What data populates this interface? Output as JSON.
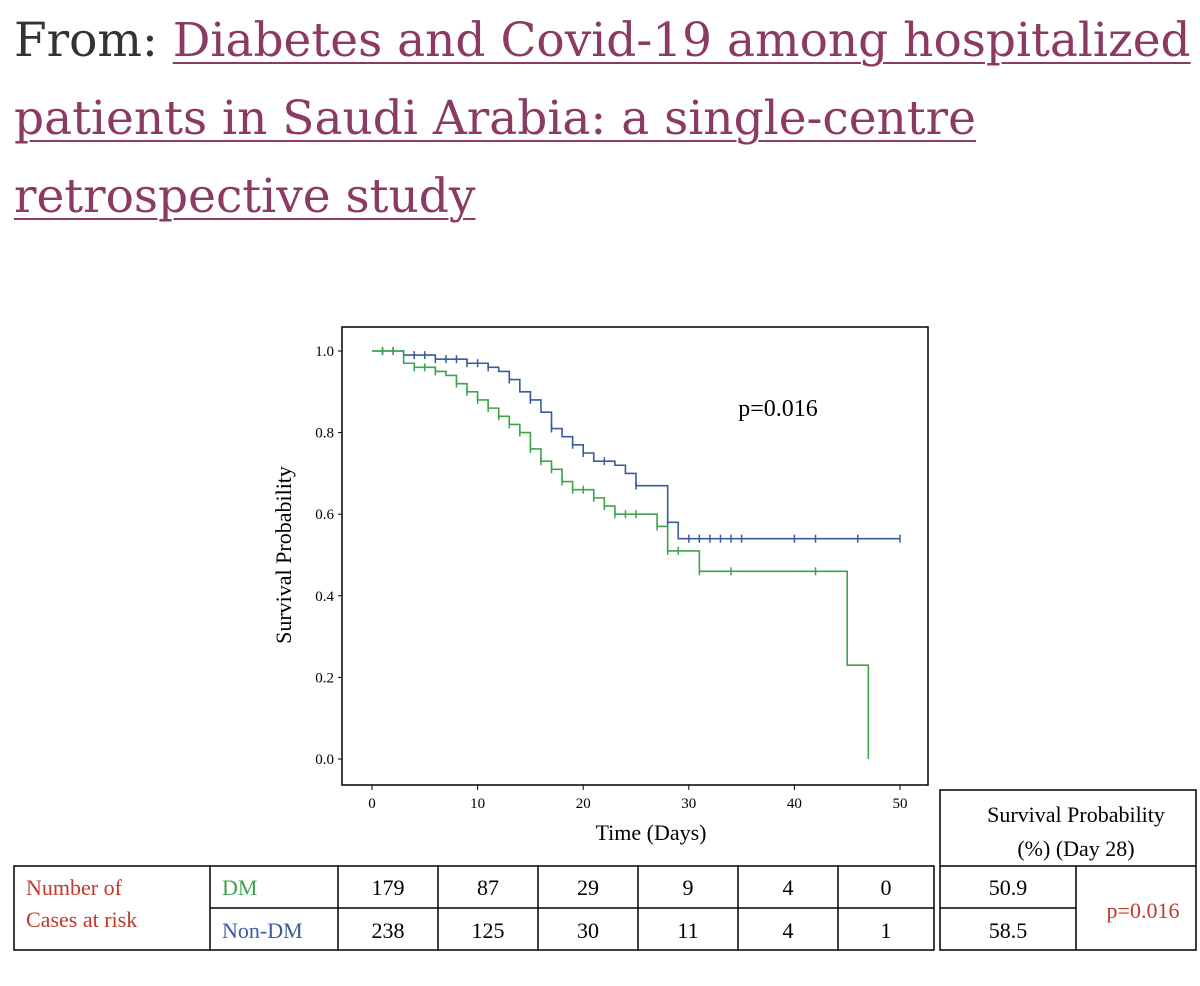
{
  "header": {
    "from_label": "From:",
    "link_text": "Diabetes and Covid-19 among hospitalized patients in Saudi Arabia: a single-centre retrospective study"
  },
  "colors": {
    "link": "#8b3a62",
    "dm": "#3fa34d",
    "non_dm": "#3a5ba0",
    "label_red": "#c0392b"
  },
  "chart_data": {
    "type": "line",
    "subtype": "kaplan-meier",
    "ylabel": "Survival Probability",
    "xlabel": "Time (Days)",
    "xlim": [
      0,
      50
    ],
    "ylim": [
      0,
      1.0
    ],
    "x_ticks": [
      "0",
      "10",
      "20",
      "30",
      "40",
      "50"
    ],
    "y_ticks": [
      "0.0",
      "0.2",
      "0.4",
      "0.6",
      "0.8",
      "1.0"
    ],
    "annotation": "p=0.016",
    "series": [
      {
        "name": "Non-DM",
        "color": "#3a5ba0",
        "steps": [
          [
            0,
            1.0
          ],
          [
            3,
            0.99
          ],
          [
            6,
            0.98
          ],
          [
            9,
            0.97
          ],
          [
            11,
            0.96
          ],
          [
            12,
            0.95
          ],
          [
            13,
            0.93
          ],
          [
            14,
            0.9
          ],
          [
            15,
            0.88
          ],
          [
            16,
            0.85
          ],
          [
            17,
            0.81
          ],
          [
            18,
            0.79
          ],
          [
            19,
            0.77
          ],
          [
            20,
            0.75
          ],
          [
            21,
            0.73
          ],
          [
            23,
            0.72
          ],
          [
            24,
            0.7
          ],
          [
            25,
            0.67
          ],
          [
            28,
            0.58
          ],
          [
            29,
            0.54
          ],
          [
            50,
            0.54
          ]
        ],
        "censor_x": [
          1,
          2,
          3,
          4,
          5,
          6,
          7,
          8,
          9,
          10,
          11,
          13,
          15,
          17,
          19,
          20,
          22,
          25,
          28,
          30,
          31,
          32,
          33,
          34,
          35,
          40,
          42,
          46,
          50
        ]
      },
      {
        "name": "DM",
        "color": "#3fa34d",
        "steps": [
          [
            0,
            1.0
          ],
          [
            3,
            0.97
          ],
          [
            4,
            0.96
          ],
          [
            6,
            0.95
          ],
          [
            7,
            0.94
          ],
          [
            8,
            0.92
          ],
          [
            9,
            0.9
          ],
          [
            10,
            0.88
          ],
          [
            11,
            0.86
          ],
          [
            12,
            0.84
          ],
          [
            13,
            0.82
          ],
          [
            14,
            0.8
          ],
          [
            15,
            0.76
          ],
          [
            16,
            0.73
          ],
          [
            17,
            0.71
          ],
          [
            18,
            0.68
          ],
          [
            19,
            0.66
          ],
          [
            21,
            0.64
          ],
          [
            22,
            0.62
          ],
          [
            23,
            0.6
          ],
          [
            27,
            0.57
          ],
          [
            28,
            0.51
          ],
          [
            31,
            0.46
          ],
          [
            45,
            0.23
          ],
          [
            47,
            0.0
          ]
        ],
        "censor_x": [
          1,
          2,
          4,
          5,
          6,
          8,
          9,
          10,
          11,
          12,
          13,
          14,
          15,
          16,
          17,
          18,
          19,
          20,
          21,
          22,
          23,
          24,
          25,
          27,
          28,
          29,
          31,
          34,
          42
        ]
      }
    ]
  },
  "risk_table": {
    "row_label": "Number of Cases at risk",
    "rows": [
      {
        "group": "DM",
        "counts": [
          "179",
          "87",
          "29",
          "9",
          "4",
          "0"
        ],
        "survival": "50.9"
      },
      {
        "group": "Non-DM",
        "counts": [
          "238",
          "125",
          "30",
          "11",
          "4",
          "1"
        ],
        "survival": "58.5"
      }
    ],
    "survival_header": "Survival Probability (%) (Day 28)",
    "p_value": "p=0.016"
  }
}
